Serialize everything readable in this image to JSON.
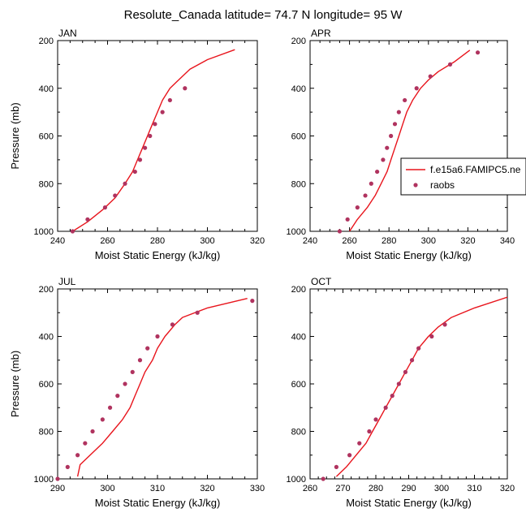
{
  "figure": {
    "title": "Resolute_Canada  latitude= 74.7 N longitude= 95 W"
  },
  "legend": {
    "model_label": "f.e15a6.FAMIPC5.ne",
    "obs_label": "raobs",
    "placement": "right of APR panel"
  },
  "colors": {
    "model_line": "#e8141c",
    "obs_marker": "#b0335f",
    "axes": "#000000",
    "background": "#ffffff"
  },
  "chart_data": [
    {
      "type": "line",
      "title": "JAN",
      "xlabel": "Moist Static Energy (kJ/kg)",
      "ylabel": "Pressure (mb)",
      "xlim": [
        240,
        320
      ],
      "ylim": [
        1000,
        200
      ],
      "xticks": [
        240,
        260,
        280,
        300,
        320
      ],
      "yticks": [
        200,
        400,
        600,
        800,
        1000
      ],
      "series": [
        {
          "name": "f.e15a6.FAMIPC5.ne",
          "kind": "line",
          "points": [
            [
              246,
              1000
            ],
            [
              252,
              960
            ],
            [
              258,
              910
            ],
            [
              263,
              860
            ],
            [
              267,
              800
            ],
            [
              270,
              750
            ],
            [
              272,
              700
            ],
            [
              274,
              650
            ],
            [
              276,
              600
            ],
            [
              278,
              550
            ],
            [
              280,
              500
            ],
            [
              282,
              450
            ],
            [
              285,
              400
            ],
            [
              288,
              370
            ],
            [
              293,
              320
            ],
            [
              300,
              280
            ],
            [
              311,
              238
            ]
          ]
        },
        {
          "name": "raobs",
          "kind": "scatter",
          "points": [
            [
              246,
              1000
            ],
            [
              252,
              950
            ],
            [
              259,
              900
            ],
            [
              263,
              850
            ],
            [
              267,
              800
            ],
            [
              271,
              750
            ],
            [
              273,
              700
            ],
            [
              275,
              650
            ],
            [
              277,
              600
            ],
            [
              279,
              550
            ],
            [
              282,
              500
            ],
            [
              285,
              450
            ],
            [
              291,
              400
            ]
          ]
        }
      ]
    },
    {
      "type": "line",
      "title": "APR",
      "xlabel": "Moist Static Energy (kJ/kg)",
      "ylabel": "",
      "xlim": [
        240,
        340
      ],
      "ylim": [
        1000,
        200
      ],
      "xticks": [
        240,
        260,
        280,
        300,
        320,
        340
      ],
      "yticks": [
        200,
        400,
        600,
        800,
        1000
      ],
      "series": [
        {
          "name": "f.e15a6.FAMIPC5.ne",
          "kind": "line",
          "points": [
            [
              260,
              1000
            ],
            [
              264,
              950
            ],
            [
              269,
              900
            ],
            [
              273,
              850
            ],
            [
              276,
              800
            ],
            [
              279,
              750
            ],
            [
              281,
              700
            ],
            [
              283,
              650
            ],
            [
              285,
              600
            ],
            [
              287,
              550
            ],
            [
              289,
              500
            ],
            [
              292,
              450
            ],
            [
              296,
              400
            ],
            [
              300,
              365
            ],
            [
              305,
              330
            ],
            [
              313,
              290
            ],
            [
              321,
              240
            ]
          ]
        },
        {
          "name": "raobs",
          "kind": "scatter",
          "points": [
            [
              255,
              1000
            ],
            [
              259,
              950
            ],
            [
              264,
              900
            ],
            [
              268,
              850
            ],
            [
              271,
              800
            ],
            [
              274,
              750
            ],
            [
              277,
              700
            ],
            [
              279,
              650
            ],
            [
              281,
              600
            ],
            [
              283,
              550
            ],
            [
              285,
              500
            ],
            [
              288,
              450
            ],
            [
              294,
              400
            ],
            [
              301,
              350
            ],
            [
              311,
              300
            ],
            [
              325,
              250
            ]
          ]
        }
      ]
    },
    {
      "type": "line",
      "title": "JUL",
      "xlabel": "Moist Static Energy (kJ/kg)",
      "ylabel": "Pressure (mb)",
      "xlim": [
        290,
        330
      ],
      "ylim": [
        1000,
        200
      ],
      "xticks": [
        290,
        300,
        310,
        320,
        330
      ],
      "yticks": [
        200,
        400,
        600,
        800,
        1000
      ],
      "series": [
        {
          "name": "f.e15a6.FAMIPC5.ne",
          "kind": "line",
          "points": [
            [
              294,
              990
            ],
            [
              294.5,
              940
            ],
            [
              296.5,
              900
            ],
            [
              299,
              850
            ],
            [
              301,
              800
            ],
            [
              303,
              750
            ],
            [
              304.5,
              700
            ],
            [
              305.5,
              650
            ],
            [
              306.5,
              600
            ],
            [
              307.5,
              550
            ],
            [
              309,
              500
            ],
            [
              310,
              450
            ],
            [
              311.5,
              400
            ],
            [
              313.5,
              350
            ],
            [
              315,
              320
            ],
            [
              320,
              280
            ],
            [
              328,
              240
            ]
          ]
        },
        {
          "name": "raobs",
          "kind": "scatter",
          "points": [
            [
              290,
              1000
            ],
            [
              292,
              950
            ],
            [
              294,
              900
            ],
            [
              295.5,
              850
            ],
            [
              297,
              800
            ],
            [
              299,
              750
            ],
            [
              300.5,
              700
            ],
            [
              302,
              650
            ],
            [
              303.5,
              600
            ],
            [
              305,
              550
            ],
            [
              306.5,
              500
            ],
            [
              308,
              450
            ],
            [
              310,
              400
            ],
            [
              313,
              350
            ],
            [
              318,
              300
            ],
            [
              329,
              250
            ]
          ]
        }
      ]
    },
    {
      "type": "line",
      "title": "OCT",
      "xlabel": "Moist Static Energy (kJ/kg)",
      "ylabel": "",
      "xlim": [
        260,
        320
      ],
      "ylim": [
        1000,
        200
      ],
      "xticks": [
        260,
        270,
        280,
        290,
        300,
        310,
        320
      ],
      "yticks": [
        200,
        400,
        600,
        800,
        1000
      ],
      "series": [
        {
          "name": "f.e15a6.FAMIPC5.ne",
          "kind": "line",
          "points": [
            [
              268,
              990
            ],
            [
              271,
              950
            ],
            [
              274,
              900
            ],
            [
              277,
              850
            ],
            [
              279,
              800
            ],
            [
              281,
              750
            ],
            [
              283,
              700
            ],
            [
              285,
              650
            ],
            [
              287,
              600
            ],
            [
              289,
              550
            ],
            [
              291,
              500
            ],
            [
              293,
              450
            ],
            [
              296,
              400
            ],
            [
              299,
              360
            ],
            [
              303,
              320
            ],
            [
              310,
              280
            ],
            [
              320,
              235
            ]
          ]
        },
        {
          "name": "raobs",
          "kind": "scatter",
          "points": [
            [
              264,
              1000
            ],
            [
              268,
              950
            ],
            [
              272,
              900
            ],
            [
              275,
              850
            ],
            [
              278,
              800
            ],
            [
              280,
              750
            ],
            [
              283,
              700
            ],
            [
              285,
              650
            ],
            [
              287,
              600
            ],
            [
              289,
              550
            ],
            [
              291,
              500
            ],
            [
              293,
              450
            ],
            [
              297,
              400
            ],
            [
              301,
              350
            ]
          ]
        }
      ]
    }
  ]
}
